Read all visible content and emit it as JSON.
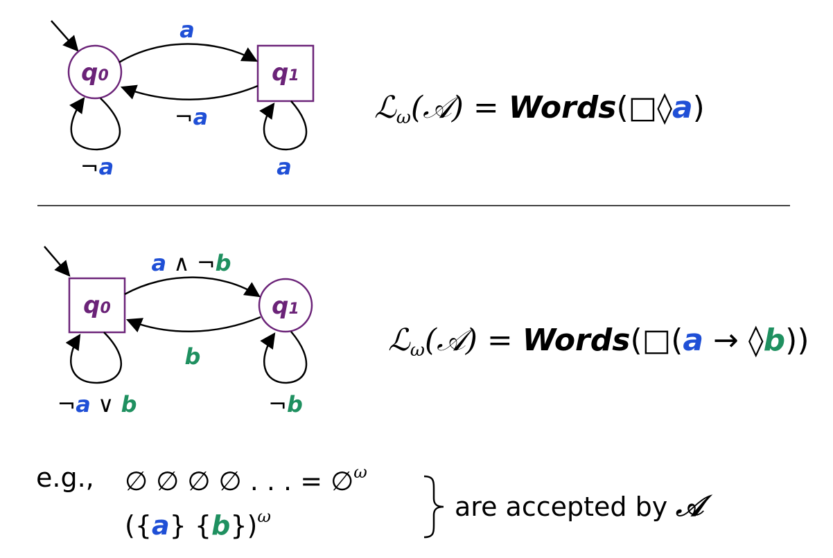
{
  "automaton1": {
    "states": [
      {
        "id": "q0",
        "base": "q",
        "sub": "0",
        "shape": "circle",
        "initial": true
      },
      {
        "id": "q1",
        "base": "q",
        "sub": "1",
        "shape": "square",
        "initial": false
      }
    ],
    "edges": {
      "q0_to_q1": [
        {
          "t": "a",
          "c": "blue"
        }
      ],
      "q1_to_q0": [
        {
          "t": "¬",
          "c": "op"
        },
        {
          "t": "a",
          "c": "blue"
        }
      ],
      "q0_loop": [
        {
          "t": "¬",
          "c": "op"
        },
        {
          "t": "a",
          "c": "blue"
        }
      ],
      "q1_loop": [
        {
          "t": "a",
          "c": "blue"
        }
      ]
    },
    "formula": {
      "lhs_L": "ℒ",
      "lhs_sub": "ω",
      "lhs_A": "(𝒜) = ",
      "words": "Words",
      "open": "(□◊",
      "prop": "a",
      "close": ")"
    }
  },
  "automaton2": {
    "states": [
      {
        "id": "q0",
        "base": "q",
        "sub": "0",
        "shape": "square",
        "initial": true
      },
      {
        "id": "q1",
        "base": "q",
        "sub": "1",
        "shape": "circle",
        "initial": false
      }
    ],
    "edges": {
      "q0_to_q1": [
        {
          "t": "a",
          "c": "blue"
        },
        {
          "t": " ∧ ¬",
          "c": "op"
        },
        {
          "t": "b",
          "c": "green"
        }
      ],
      "q1_to_q0": [
        {
          "t": "b",
          "c": "green"
        }
      ],
      "q0_loop": [
        {
          "t": "¬",
          "c": "op"
        },
        {
          "t": "a",
          "c": "blue"
        },
        {
          "t": " ∨ ",
          "c": "op"
        },
        {
          "t": "b",
          "c": "green"
        }
      ],
      "q1_loop": [
        {
          "t": "¬",
          "c": "op"
        },
        {
          "t": "b",
          "c": "green"
        }
      ]
    },
    "formula": {
      "lhs_L": "ℒ",
      "lhs_sub": "ω",
      "lhs_A": "(𝒜) = ",
      "words": "Words",
      "open": "(□(",
      "prop_a": "a",
      "arrow": " → ◊",
      "prop_b": "b",
      "close": "))"
    }
  },
  "example": {
    "prefix": "e.g.,",
    "line1": "∅ ∅ ∅ ∅ . . . = ∅",
    "line1_sup": "ω",
    "line2_open": "({",
    "line2_a": "a",
    "line2_mid": "} {",
    "line2_b": "b",
    "line2_close": "})",
    "line2_sup": "ω",
    "suffix": "are accepted by ",
    "suffix_A": "𝒜"
  },
  "colors": {
    "state_stroke": "#6b2378",
    "prop_a": "#1f4fd6",
    "prop_b": "#1f9060"
  }
}
